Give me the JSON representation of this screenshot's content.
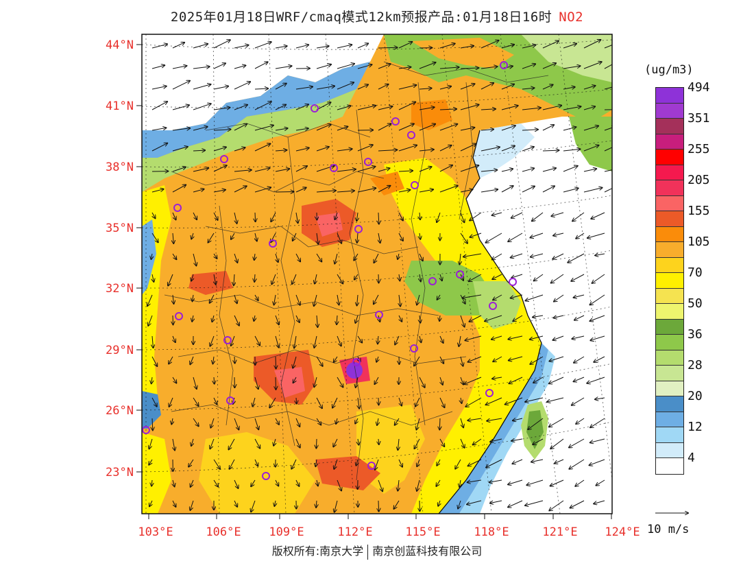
{
  "title": {
    "main": "2025年01月18日WRF/cmaq模式12km预报产品:01月18日16时",
    "pollutant": "NO2"
  },
  "axes": {
    "lat_labels": [
      "44°N",
      "41°N",
      "38°N",
      "35°N",
      "32°N",
      "29°N",
      "26°N",
      "23°N"
    ],
    "lon_labels": [
      "103°E",
      "106°E",
      "109°E",
      "112°E",
      "115°E",
      "118°E",
      "121°E",
      "124°E"
    ],
    "label_color": "#e8302b"
  },
  "colorbar": {
    "unit": "(ug/m3)",
    "colors": [
      "#8e32d8",
      "#a03ad0",
      "#a4305a",
      "#c81e7c",
      "#ff0000",
      "#f5194e",
      "#f1325a",
      "#fa6464",
      "#ec5a28",
      "#fa8c0a",
      "#f8ad2c",
      "#fdd31d",
      "#fff000",
      "#f5e350",
      "#eef56e",
      "#6ca83a",
      "#8ec84a",
      "#b4dc6e",
      "#c8e693",
      "#e1f0c2",
      "#4a8ec8",
      "#6eaee4",
      "#a0d8f5",
      "#d2ecfa",
      "#ffffff"
    ],
    "labels": [
      {
        "text": "494",
        "cell": 1
      },
      {
        "text": "351",
        "cell": 3
      },
      {
        "text": "255",
        "cell": 5
      },
      {
        "text": "205",
        "cell": 7
      },
      {
        "text": "155",
        "cell": 9
      },
      {
        "text": "105",
        "cell": 11
      },
      {
        "text": "70",
        "cell": 13
      },
      {
        "text": "50",
        "cell": 15
      },
      {
        "text": "36",
        "cell": 17
      },
      {
        "text": "28",
        "cell": 19
      },
      {
        "text": "20",
        "cell": 21
      },
      {
        "text": "12",
        "cell": 23
      },
      {
        "text": "4",
        "cell": 25
      }
    ]
  },
  "wind_reference": {
    "label": "10 m/s"
  },
  "copyright": {
    "left": "版权所有:南京大学",
    "right": "南京创蓝科技有限公司"
  }
}
